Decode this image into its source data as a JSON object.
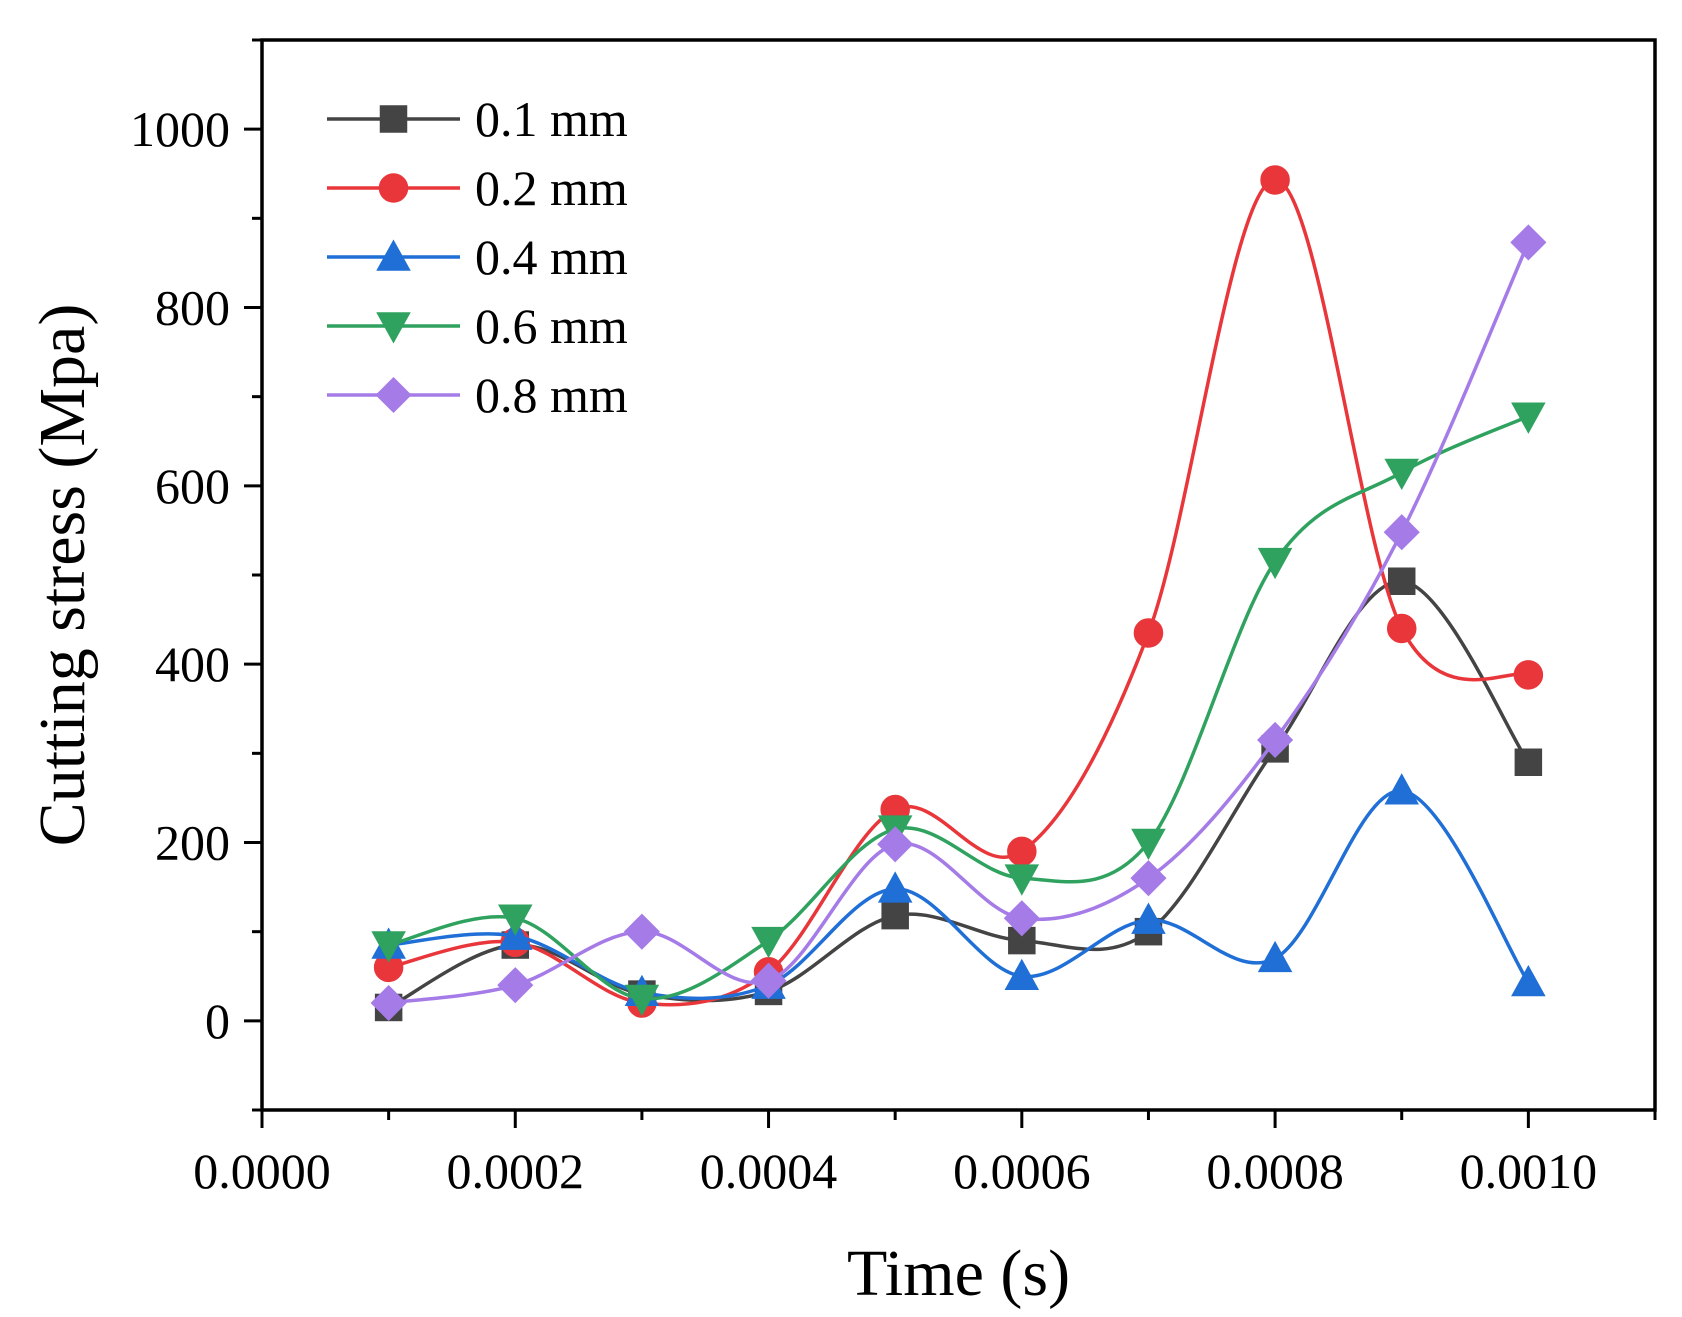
{
  "chart_data": {
    "type": "line",
    "title": "",
    "xlabel": "Time (s)",
    "ylabel": "Cutting stress (Mpa)",
    "xlim": [
      0,
      0.0011
    ],
    "ylim": [
      -100,
      1100
    ],
    "xticks": [
      0,
      0.0002,
      0.0004,
      0.0006,
      0.0008,
      0.001
    ],
    "xtick_labels": [
      "0.0000",
      "0.0002",
      "0.0004",
      "0.0006",
      "0.0008",
      "0.0010"
    ],
    "yticks": [
      0,
      200,
      400,
      600,
      800,
      1000
    ],
    "ytick_labels": [
      "0",
      "200",
      "400",
      "600",
      "800",
      "1000"
    ],
    "legend_position": "top-left",
    "x": [
      0.0001,
      0.0002,
      0.0003,
      0.0004,
      0.0005,
      0.0006,
      0.0007,
      0.0008,
      0.0009,
      0.001
    ],
    "series": [
      {
        "name": "0.1 mm",
        "color": "#444444",
        "marker": "square",
        "values": [
          15,
          85,
          30,
          33,
          118,
          90,
          100,
          305,
          493,
          290
        ]
      },
      {
        "name": "0.2 mm",
        "color": "#e8363a",
        "marker": "circle",
        "values": [
          60,
          88,
          20,
          55,
          237,
          190,
          435,
          943,
          440,
          388
        ]
      },
      {
        "name": "0.4 mm",
        "color": "#1f6fd6",
        "marker": "triangle-up",
        "values": [
          85,
          95,
          32,
          40,
          148,
          50,
          113,
          70,
          258,
          43
        ]
      },
      {
        "name": "0.6 mm",
        "color": "#2ea25e",
        "marker": "triangle-down",
        "values": [
          85,
          115,
          25,
          90,
          215,
          160,
          200,
          515,
          615,
          678
        ]
      },
      {
        "name": "0.8 mm",
        "color": "#a57be8",
        "marker": "diamond",
        "values": [
          20,
          40,
          100,
          45,
          198,
          115,
          160,
          315,
          548,
          873
        ]
      }
    ]
  }
}
